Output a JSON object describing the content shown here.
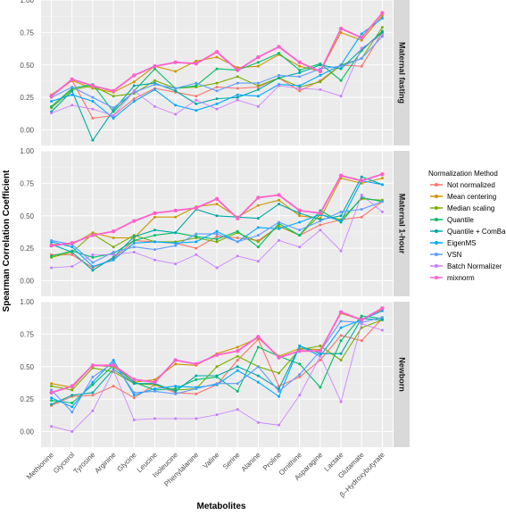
{
  "chart_data": {
    "type": "line",
    "xlabel": "Metabolites",
    "ylabel": "Spearman Correlation Coefficient",
    "ylim": [
      -0.12,
      1.0
    ],
    "yticks": [
      "0.00",
      "0.25",
      "0.50",
      "0.75",
      "1.00"
    ],
    "legend_title": "Normalization Method",
    "legend_placement": "right",
    "grid": true,
    "categories": [
      "Methionine",
      "Glycerol",
      "Tyrosine",
      "Arginine",
      "Glycine",
      "Leucine",
      "Isoleucine",
      "Phenylalanine",
      "Valine",
      "Serine",
      "Alanine",
      "Proline",
      "Ornithine",
      "Asparagine",
      "Lactate",
      "Glutamate",
      "β–Hydroxybutyrate"
    ],
    "methods": [
      {
        "name": "Not normalized",
        "color": "#F8766D"
      },
      {
        "name": "Mean centering",
        "color": "#CD9600"
      },
      {
        "name": "Median scaling",
        "color": "#7CAE00"
      },
      {
        "name": "Quantile",
        "color": "#00BE67"
      },
      {
        "name": "Quantile + ComBat",
        "color": "#00A9A5"
      },
      {
        "name": "EigenMS",
        "color": "#00A9FF"
      },
      {
        "name": "VSN",
        "color": "#619CFF"
      },
      {
        "name": "Batch Normalizer",
        "color": "#C77CFF"
      },
      {
        "name": "mixnorm",
        "color": "#FF61CC"
      }
    ],
    "panels": [
      {
        "label": "Maternal fasting",
        "series": [
          {
            "name": "Not normalized",
            "values": [
              0.26,
              0.38,
              0.09,
              0.11,
              0.24,
              0.32,
              0.29,
              0.26,
              0.33,
              0.32,
              0.33,
              0.4,
              0.3,
              0.38,
              0.5,
              0.49,
              0.75
            ]
          },
          {
            "name": "Mean centering",
            "values": [
              0.27,
              0.38,
              0.32,
              0.29,
              0.37,
              0.49,
              0.45,
              0.53,
              0.56,
              0.48,
              0.49,
              0.58,
              0.49,
              0.45,
              0.75,
              0.69,
              0.88
            ]
          },
          {
            "name": "Median scaling",
            "values": [
              0.17,
              0.31,
              0.34,
              0.26,
              0.28,
              0.38,
              0.32,
              0.33,
              0.36,
              0.41,
              0.34,
              0.4,
              0.33,
              0.37,
              0.5,
              0.55,
              0.79
            ]
          },
          {
            "name": "Quantile",
            "values": [
              0.18,
              0.32,
              0.35,
              0.14,
              0.3,
              0.47,
              0.32,
              0.34,
              0.47,
              0.46,
              0.52,
              0.59,
              0.46,
              0.51,
              0.38,
              0.61,
              0.76
            ]
          },
          {
            "name": "Quantile + ComBat",
            "values": [
              0.14,
              0.3,
              -0.08,
              0.15,
              0.34,
              0.36,
              0.3,
              0.2,
              0.24,
              0.25,
              0.31,
              0.4,
              0.44,
              0.5,
              0.47,
              0.62,
              0.75
            ]
          },
          {
            "name": "EigenMS",
            "values": [
              0.22,
              0.27,
              0.22,
              0.09,
              0.22,
              0.31,
              0.19,
              0.15,
              0.2,
              0.27,
              0.26,
              0.35,
              0.34,
              0.42,
              0.5,
              0.74,
              0.86
            ]
          },
          {
            "name": "VSN",
            "values": [
              0.25,
              0.33,
              0.25,
              0.17,
              0.29,
              0.35,
              0.32,
              0.36,
              0.3,
              0.36,
              0.36,
              0.42,
              0.41,
              0.47,
              0.49,
              0.55,
              0.72
            ]
          },
          {
            "name": "Batch Normalizer",
            "values": [
              0.13,
              0.19,
              0.16,
              0.11,
              0.3,
              0.18,
              0.12,
              0.23,
              0.16,
              0.23,
              0.18,
              0.34,
              0.32,
              0.31,
              0.26,
              0.63,
              0.73
            ]
          },
          {
            "name": "mixnorm",
            "values": [
              0.26,
              0.39,
              0.34,
              0.3,
              0.42,
              0.49,
              0.52,
              0.51,
              0.6,
              0.46,
              0.56,
              0.64,
              0.52,
              0.45,
              0.78,
              0.71,
              0.9
            ]
          }
        ]
      },
      {
        "label": "Maternal 1-hour",
        "series": [
          {
            "name": "Not normalized",
            "values": [
              0.2,
              0.2,
              0.1,
              0.17,
              0.31,
              0.3,
              0.29,
              0.25,
              0.34,
              0.33,
              0.31,
              0.42,
              0.35,
              0.43,
              0.47,
              0.49,
              0.61
            ]
          },
          {
            "name": "Mean centering",
            "values": [
              0.28,
              0.28,
              0.37,
              0.33,
              0.33,
              0.49,
              0.49,
              0.57,
              0.59,
              0.49,
              0.58,
              0.62,
              0.5,
              0.48,
              0.79,
              0.75,
              0.79
            ]
          },
          {
            "name": "Median scaling",
            "values": [
              0.18,
              0.22,
              0.36,
              0.26,
              0.35,
              0.3,
              0.3,
              0.33,
              0.3,
              0.37,
              0.3,
              0.42,
              0.35,
              0.51,
              0.47,
              0.63,
              0.62
            ]
          },
          {
            "name": "Quantile",
            "values": [
              0.19,
              0.23,
              0.18,
              0.21,
              0.31,
              0.35,
              0.37,
              0.34,
              0.32,
              0.38,
              0.26,
              0.44,
              0.35,
              0.54,
              0.45,
              0.64,
              0.61
            ]
          },
          {
            "name": "Quantile + ComBat",
            "values": [
              0.28,
              0.22,
              0.08,
              0.18,
              0.34,
              0.39,
              0.37,
              0.55,
              0.5,
              0.49,
              0.48,
              0.59,
              0.52,
              0.47,
              0.5,
              0.8,
              0.74
            ]
          },
          {
            "name": "EigenMS",
            "values": [
              0.3,
              0.26,
              0.11,
              0.16,
              0.29,
              0.3,
              0.29,
              0.3,
              0.38,
              0.3,
              0.41,
              0.4,
              0.45,
              0.51,
              0.46,
              0.77,
              0.74
            ]
          },
          {
            "name": "VSN",
            "values": [
              0.31,
              0.28,
              0.14,
              0.22,
              0.26,
              0.24,
              0.27,
              0.36,
              0.36,
              0.3,
              0.35,
              0.45,
              0.39,
              0.46,
              0.53,
              0.55,
              0.61
            ]
          },
          {
            "name": "Batch Normalizer",
            "values": [
              0.1,
              0.11,
              0.2,
              0.2,
              0.22,
              0.16,
              0.13,
              0.2,
              0.1,
              0.19,
              0.15,
              0.31,
              0.26,
              0.39,
              0.23,
              0.66,
              0.53
            ]
          },
          {
            "name": "mixnorm",
            "values": [
              0.27,
              0.29,
              0.35,
              0.38,
              0.46,
              0.52,
              0.54,
              0.56,
              0.63,
              0.48,
              0.64,
              0.66,
              0.54,
              0.52,
              0.81,
              0.77,
              0.82
            ]
          }
        ]
      },
      {
        "label": "Newborn",
        "series": [
          {
            "name": "Not normalized",
            "values": [
              0.2,
              0.27,
              0.28,
              0.35,
              0.26,
              0.36,
              0.3,
              0.29,
              0.36,
              0.55,
              0.71,
              0.35,
              0.42,
              0.55,
              0.74,
              0.7,
              0.87
            ]
          },
          {
            "name": "Mean centering",
            "values": [
              0.37,
              0.34,
              0.51,
              0.5,
              0.38,
              0.4,
              0.52,
              0.51,
              0.6,
              0.65,
              0.72,
              0.58,
              0.64,
              0.63,
              0.91,
              0.86,
              0.94
            ]
          },
          {
            "name": "Median scaling",
            "values": [
              0.35,
              0.32,
              0.49,
              0.46,
              0.37,
              0.36,
              0.32,
              0.33,
              0.5,
              0.58,
              0.5,
              0.45,
              0.63,
              0.66,
              0.55,
              0.8,
              0.86
            ]
          },
          {
            "name": "Quantile",
            "values": [
              0.24,
              0.22,
              0.36,
              0.51,
              0.38,
              0.32,
              0.33,
              0.4,
              0.42,
              0.31,
              0.65,
              0.58,
              0.52,
              0.34,
              0.7,
              0.89,
              0.87
            ]
          },
          {
            "name": "Quantile + ComBat",
            "values": [
              0.21,
              0.28,
              0.3,
              0.48,
              0.37,
              0.37,
              0.31,
              0.43,
              0.43,
              0.5,
              0.43,
              0.33,
              0.66,
              0.6,
              0.6,
              0.87,
              0.86
            ]
          },
          {
            "name": "EigenMS",
            "values": [
              0.26,
              0.19,
              0.38,
              0.55,
              0.28,
              0.33,
              0.35,
              0.34,
              0.36,
              0.47,
              0.38,
              0.27,
              0.66,
              0.58,
              0.8,
              0.86,
              0.93
            ]
          },
          {
            "name": "VSN",
            "values": [
              0.32,
              0.15,
              0.42,
              0.53,
              0.3,
              0.31,
              0.29,
              0.33,
              0.37,
              0.37,
              0.5,
              0.31,
              0.44,
              0.62,
              0.85,
              0.84,
              0.88
            ]
          },
          {
            "name": "Batch Normalizer",
            "values": [
              0.04,
              0.0,
              0.16,
              0.47,
              0.09,
              0.1,
              0.1,
              0.1,
              0.13,
              0.17,
              0.07,
              0.05,
              0.28,
              0.58,
              0.23,
              0.83,
              0.78
            ]
          },
          {
            "name": "mixnorm",
            "values": [
              0.3,
              0.35,
              0.51,
              0.51,
              0.4,
              0.38,
              0.55,
              0.52,
              0.59,
              0.62,
              0.73,
              0.57,
              0.62,
              0.62,
              0.92,
              0.86,
              0.95
            ]
          }
        ]
      }
    ]
  }
}
